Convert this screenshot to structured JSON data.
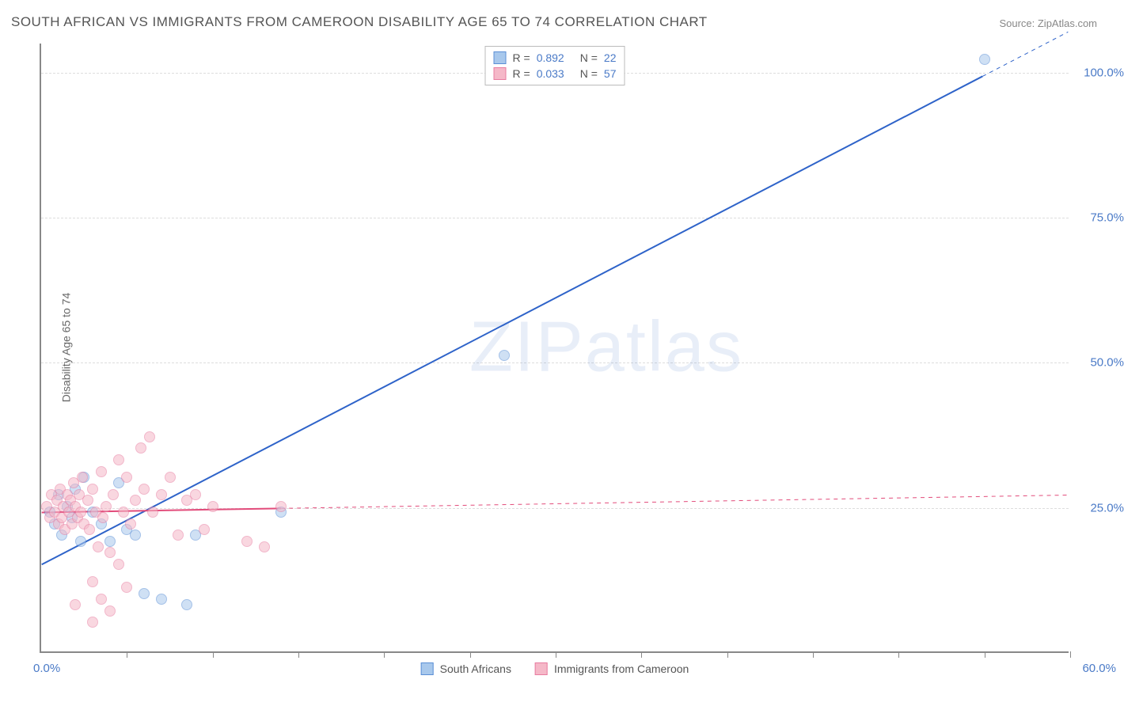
{
  "title": "SOUTH AFRICAN VS IMMIGRANTS FROM CAMEROON DISABILITY AGE 65 TO 74 CORRELATION CHART",
  "source": "Source: ZipAtlas.com",
  "ylabel": "Disability Age 65 to 74",
  "watermark": "ZIPatlas",
  "chart": {
    "type": "scatter",
    "xlim": [
      0,
      60
    ],
    "ylim": [
      0,
      105
    ],
    "x_ticks": [
      0,
      5,
      10,
      15,
      20,
      25,
      30,
      35,
      40,
      45,
      50,
      55,
      60
    ],
    "y_gridlines": [
      25,
      50,
      75,
      100
    ],
    "y_tick_labels": [
      "25.0%",
      "50.0%",
      "75.0%",
      "100.0%"
    ],
    "x_label_start": "0.0%",
    "x_label_end": "60.0%",
    "background_color": "#ffffff",
    "grid_color": "#dddddd",
    "axis_color": "#888888",
    "point_radius": 7,
    "series": [
      {
        "name": "South Africans",
        "fill_color": "#a8c8ec",
        "stroke_color": "#5b8fd6",
        "fill_opacity": 0.55,
        "R": "0.892",
        "N": "22",
        "regression": {
          "x1": 0,
          "y1": 15,
          "x2": 60,
          "y2": 107,
          "solid_until_x": 55,
          "color": "#2e63c9",
          "width": 2
        },
        "points": [
          [
            0.5,
            24
          ],
          [
            0.8,
            22
          ],
          [
            1.0,
            27
          ],
          [
            1.2,
            20
          ],
          [
            1.5,
            25
          ],
          [
            1.8,
            23
          ],
          [
            2.0,
            28
          ],
          [
            2.3,
            19
          ],
          [
            2.5,
            30
          ],
          [
            3.0,
            24
          ],
          [
            3.5,
            22
          ],
          [
            4.0,
            19
          ],
          [
            4.5,
            29
          ],
          [
            5.0,
            21
          ],
          [
            5.5,
            20
          ],
          [
            6.0,
            10
          ],
          [
            7.0,
            9
          ],
          [
            8.5,
            8
          ],
          [
            9.0,
            20
          ],
          [
            14.0,
            24
          ],
          [
            27.0,
            51
          ],
          [
            55.0,
            102
          ]
        ]
      },
      {
        "name": "Immigrants from Cameroon",
        "fill_color": "#f5b8c8",
        "stroke_color": "#e87ca0",
        "fill_opacity": 0.55,
        "R": "0.033",
        "N": "57",
        "regression": {
          "x1": 0,
          "y1": 24,
          "x2": 60,
          "y2": 27,
          "solid_until_x": 14,
          "color": "#e24b7a",
          "width": 2
        },
        "points": [
          [
            0.3,
            25
          ],
          [
            0.5,
            23
          ],
          [
            0.6,
            27
          ],
          [
            0.8,
            24
          ],
          [
            0.9,
            26
          ],
          [
            1.0,
            22
          ],
          [
            1.1,
            28
          ],
          [
            1.2,
            23
          ],
          [
            1.3,
            25
          ],
          [
            1.4,
            21
          ],
          [
            1.5,
            27
          ],
          [
            1.6,
            24
          ],
          [
            1.7,
            26
          ],
          [
            1.8,
            22
          ],
          [
            1.9,
            29
          ],
          [
            2.0,
            25
          ],
          [
            2.1,
            23
          ],
          [
            2.2,
            27
          ],
          [
            2.3,
            24
          ],
          [
            2.4,
            30
          ],
          [
            2.5,
            22
          ],
          [
            2.7,
            26
          ],
          [
            2.8,
            21
          ],
          [
            3.0,
            28
          ],
          [
            3.2,
            24
          ],
          [
            3.3,
            18
          ],
          [
            3.5,
            31
          ],
          [
            3.6,
            23
          ],
          [
            3.8,
            25
          ],
          [
            4.0,
            17
          ],
          [
            4.2,
            27
          ],
          [
            4.5,
            33
          ],
          [
            4.8,
            24
          ],
          [
            5.0,
            30
          ],
          [
            5.2,
            22
          ],
          [
            5.5,
            26
          ],
          [
            5.8,
            35
          ],
          [
            6.0,
            28
          ],
          [
            6.3,
            37
          ],
          [
            6.5,
            24
          ],
          [
            7.0,
            27
          ],
          [
            7.5,
            30
          ],
          [
            8.0,
            20
          ],
          [
            8.5,
            26
          ],
          [
            9.0,
            27
          ],
          [
            9.5,
            21
          ],
          [
            10.0,
            25
          ],
          [
            3.0,
            12
          ],
          [
            3.5,
            9
          ],
          [
            4.0,
            7
          ],
          [
            4.5,
            15
          ],
          [
            5.0,
            11
          ],
          [
            12.0,
            19
          ],
          [
            13.0,
            18
          ],
          [
            14.0,
            25
          ],
          [
            3.0,
            5
          ],
          [
            2.0,
            8
          ]
        ]
      }
    ]
  },
  "legend_top": {
    "rows": [
      {
        "swatch_fill": "#a8c8ec",
        "swatch_stroke": "#5b8fd6",
        "r_label": "R =",
        "r_val": "0.892",
        "n_label": "N =",
        "n_val": "22"
      },
      {
        "swatch_fill": "#f5b8c8",
        "swatch_stroke": "#e87ca0",
        "r_label": "R =",
        "r_val": "0.033",
        "n_label": "N =",
        "n_val": "57"
      }
    ]
  },
  "legend_bottom": {
    "items": [
      {
        "swatch_fill": "#a8c8ec",
        "swatch_stroke": "#5b8fd6",
        "label": "South Africans"
      },
      {
        "swatch_fill": "#f5b8c8",
        "swatch_stroke": "#e87ca0",
        "label": "Immigrants from Cameroon"
      }
    ]
  }
}
